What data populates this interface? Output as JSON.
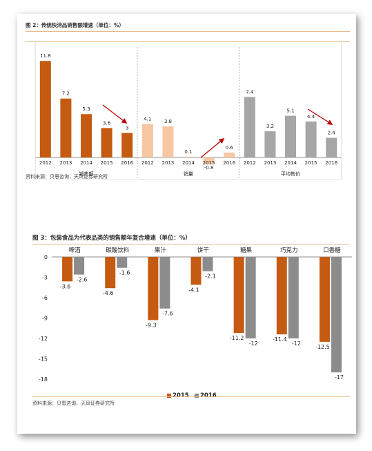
{
  "figure1": {
    "title": "图 2：传统快消品销售额增速（单位：%）",
    "source": "资料来源：贝恩咨询，天风证券研究所",
    "chart_data": {
      "type": "bar",
      "groups": [
        {
          "label": "销售额",
          "color": "#c55a11",
          "categories": [
            "2012",
            "2013",
            "2014",
            "2015",
            "2016"
          ],
          "values": [
            11.8,
            7.2,
            5.3,
            3.6,
            3
          ],
          "labels": [
            "11.8",
            "7.2",
            "5.3",
            "3.6",
            "3"
          ]
        },
        {
          "label": "销量",
          "color": "#f7c6a3",
          "categories": [
            "2012",
            "2013",
            "2014",
            "2015",
            "2016"
          ],
          "values": [
            4.1,
            3.8,
            0.1,
            -0.8,
            0.6
          ],
          "labels": [
            "4.1",
            "3.8",
            "0.1",
            "-0.8",
            "0.6"
          ]
        },
        {
          "label": "平均售价",
          "color": "#a6a6a6",
          "categories": [
            "2012",
            "2013",
            "2014",
            "2015",
            "2016"
          ],
          "values": [
            7.4,
            3.2,
            5.1,
            4.4,
            2.4
          ],
          "labels": [
            "7.4",
            "3.2",
            "5.1",
            "4.4",
            "2.4"
          ]
        }
      ],
      "ylim": [
        -1,
        13
      ],
      "arrow_color": "#c00000"
    }
  },
  "figure2": {
    "title": "图 3：包装食品为代表品类的销售额年复合增速（单位：%）",
    "source": "资料来源：贝恩咨询，天风证券研究所",
    "chart_data": {
      "type": "bar",
      "categories": [
        "啤酒",
        "碳酸饮料",
        "果汁",
        "饼干",
        "糖果",
        "巧克力",
        "口香糖"
      ],
      "series": [
        {
          "name": "2015",
          "color": "#c55a11",
          "values": [
            -3.6,
            -4.6,
            -9.3,
            -4.1,
            -11.2,
            -11.4,
            -12.5
          ],
          "labels": [
            "-3.6",
            "-4.6",
            "-9.3",
            "-4.1",
            "-11.2",
            "-11.4",
            "-12.5"
          ]
        },
        {
          "name": "2016",
          "color": "#8c8c8c",
          "values": [
            -2.6,
            -1.6,
            -7.6,
            -2.1,
            -12,
            -12,
            -17
          ],
          "labels": [
            "-2.6",
            "-1.6",
            "-7.6",
            "-2.1",
            "-12",
            "-12",
            "-17"
          ]
        }
      ],
      "ylim": [
        -18,
        0
      ],
      "yticks": [
        0,
        -3,
        -6,
        -9,
        -12,
        -15,
        -18
      ],
      "ytick_labels": [
        "0",
        "-3",
        "-6",
        "-9",
        "-12",
        "-15",
        "-18"
      ],
      "legend_position": "bottom-center",
      "legend_marker": "■"
    }
  }
}
